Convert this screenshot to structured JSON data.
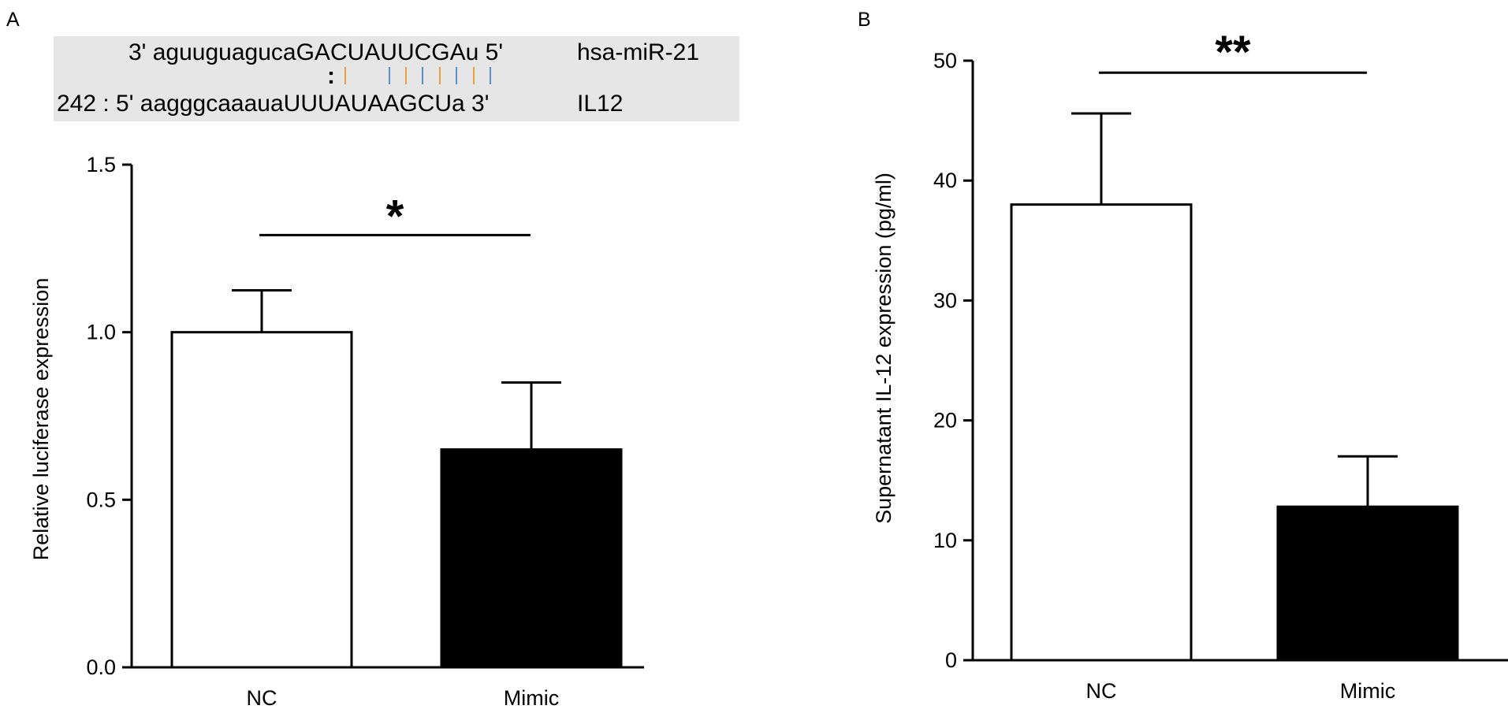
{
  "panels": {
    "a_letter": "A",
    "b_letter": "B"
  },
  "sequence": {
    "mirna_line": "3' aguuguagucaGACUAUUCGAu 5'",
    "mirna_name": "hsa-miR-21",
    "match_colon": ":",
    "target_line": "242 : 5' aagggcaaauaUUUAUAAGCUa 3'",
    "target_name": "IL12",
    "box_color": "#e6e6e6",
    "colon_color": "#1f3f8a",
    "bar_colors": [
      "#e8a23a",
      "#5a8fc8"
    ]
  },
  "chart_data": [
    {
      "type": "bar",
      "panel": "A",
      "categories": [
        "NC",
        "Mimic"
      ],
      "series": [
        {
          "values": [
            1.0,
            0.65
          ],
          "errors": [
            0.125,
            0.2
          ],
          "fills": [
            "#ffffff",
            "#000000"
          ]
        }
      ],
      "title": "",
      "xlabel": "",
      "ylabel": "Relative luciferase expression",
      "ylim": [
        0,
        1.5
      ],
      "yticks": [
        "0.0",
        "0.5",
        "1.0",
        "1.5"
      ],
      "ytick_values": [
        0,
        0.5,
        1.0,
        1.5
      ],
      "significance": "*",
      "bracket_value": 1.29,
      "grid": false
    },
    {
      "type": "bar",
      "panel": "B",
      "categories": [
        "NC",
        "Mimic"
      ],
      "series": [
        {
          "values": [
            38.0,
            12.8
          ],
          "errors": [
            7.6,
            4.2
          ],
          "fills": [
            "#ffffff",
            "#000000"
          ]
        }
      ],
      "title": "",
      "xlabel": "",
      "ylabel": "Supernatant IL-12 expression (pg/ml)",
      "ylim": [
        0,
        50
      ],
      "yticks": [
        "0",
        "10",
        "20",
        "30",
        "40",
        "50"
      ],
      "ytick_values": [
        0,
        10,
        20,
        30,
        40,
        50
      ],
      "significance": "**",
      "bracket_value": 49.0,
      "grid": false
    }
  ]
}
